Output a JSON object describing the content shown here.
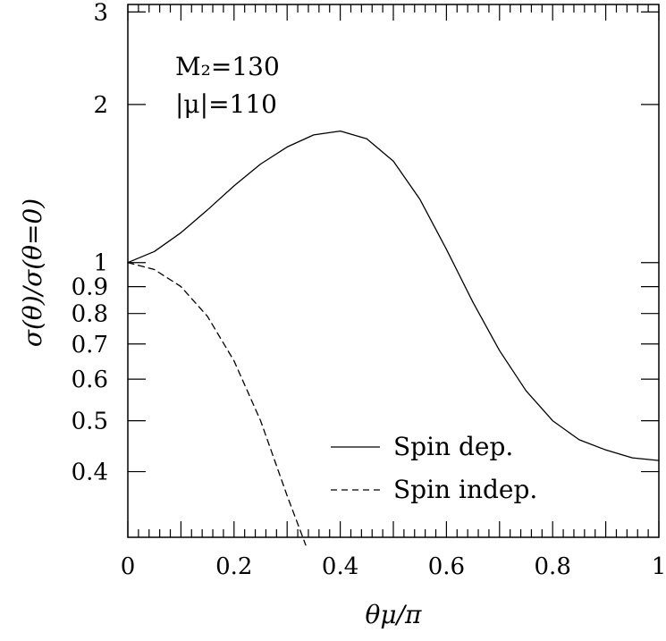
{
  "chart_data": {
    "type": "line",
    "xlabel": "θμ/π",
    "ylabel": "σ(θ)/σ(θ=0)",
    "xlim": [
      0,
      1
    ],
    "ylim": [
      0.3,
      3.1
    ],
    "y_scale": "log",
    "x_ticks": [
      0,
      0.2,
      0.4,
      0.6,
      0.8,
      1
    ],
    "x_tick_labels": [
      "0",
      "0.2",
      "0.4",
      "0.6",
      "0.8",
      "1"
    ],
    "y_ticks": [
      0.4,
      0.5,
      0.6,
      0.7,
      0.8,
      0.9,
      1,
      2,
      3
    ],
    "y_tick_labels": [
      "0.4",
      "0.5",
      "0.6",
      "0.7",
      "0.8",
      "0.9",
      "1",
      "2",
      "3"
    ],
    "annotations": [
      "M₂=130",
      "|μ|=110"
    ],
    "legend_position": "bottom-right",
    "grid": false,
    "series": [
      {
        "name": "Spin dep.",
        "style": "solid",
        "x": [
          0,
          0.05,
          0.1,
          0.15,
          0.2,
          0.25,
          0.3,
          0.35,
          0.4,
          0.45,
          0.5,
          0.55,
          0.6,
          0.65,
          0.7,
          0.75,
          0.8,
          0.85,
          0.9,
          0.95,
          1.0
        ],
        "y": [
          1.0,
          1.05,
          1.14,
          1.26,
          1.4,
          1.54,
          1.66,
          1.75,
          1.78,
          1.72,
          1.56,
          1.32,
          1.06,
          0.84,
          0.68,
          0.57,
          0.5,
          0.46,
          0.44,
          0.425,
          0.42
        ]
      },
      {
        "name": "Spin indep.",
        "style": "dashed",
        "x": [
          0,
          0.05,
          0.1,
          0.15,
          0.2,
          0.25,
          0.3,
          0.335
        ],
        "y": [
          1.0,
          0.97,
          0.9,
          0.79,
          0.65,
          0.5,
          0.36,
          0.29
        ]
      }
    ]
  }
}
